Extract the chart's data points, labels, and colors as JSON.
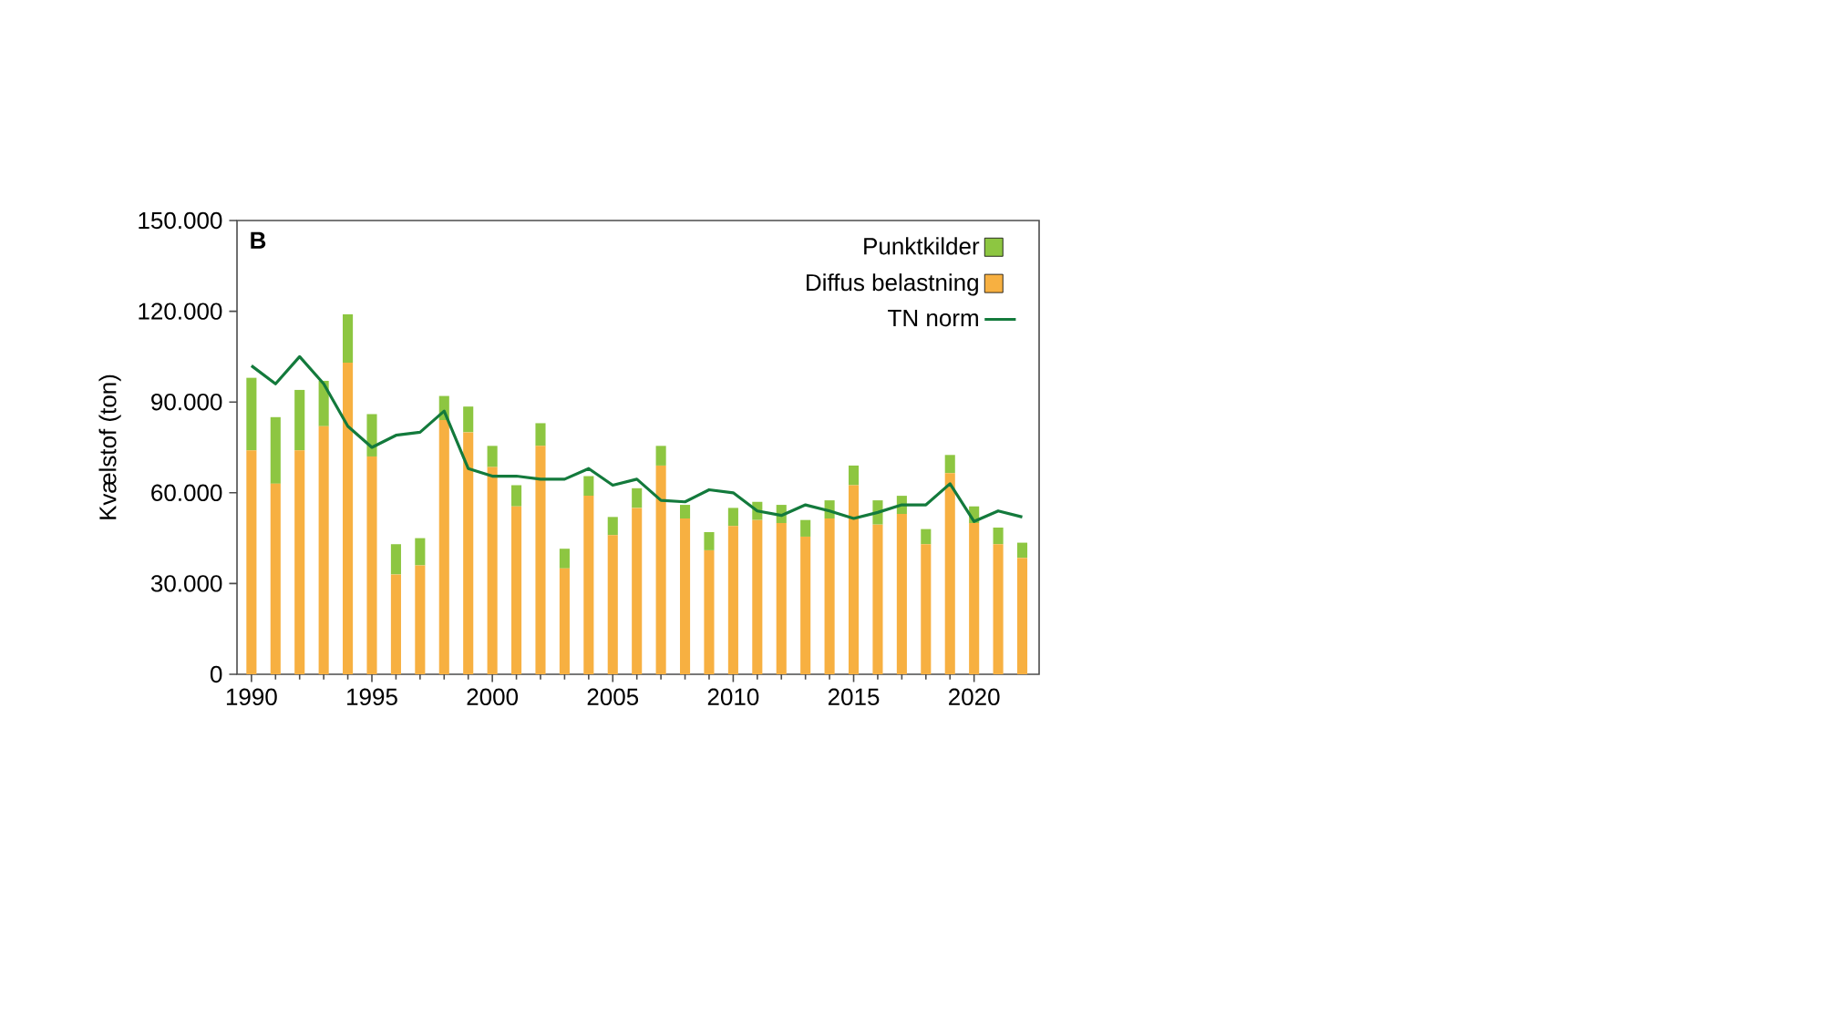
{
  "chart_data": {
    "type": "bar",
    "stacked": true,
    "ylabel": "Kvælstof (ton)",
    "annotations": [
      "B"
    ],
    "x": [
      1990,
      1991,
      1992,
      1993,
      1994,
      1995,
      1996,
      1997,
      1998,
      1999,
      2000,
      2001,
      2002,
      2003,
      2004,
      2005,
      2006,
      2007,
      2008,
      2009,
      2010,
      2011,
      2012,
      2013,
      2014,
      2015,
      2016,
      2017,
      2018,
      2019,
      2020,
      2021,
      2022
    ],
    "series": [
      {
        "name": "Diffus belastning",
        "type": "bar",
        "color": "#f7b041",
        "values": [
          74000,
          63000,
          74000,
          82000,
          103000,
          72000,
          33000,
          36000,
          84000,
          80000,
          68500,
          55500,
          75500,
          35000,
          59000,
          46000,
          55000,
          69000,
          51500,
          41000,
          49000,
          51000,
          50000,
          45500,
          51500,
          62500,
          49500,
          53000,
          43000,
          66500,
          50000,
          43000,
          38500
        ]
      },
      {
        "name": "Punktkilder",
        "type": "bar",
        "color": "#8dc641",
        "values": [
          24000,
          22000,
          20000,
          15000,
          16000,
          14000,
          10000,
          9000,
          8000,
          8500,
          7000,
          7000,
          7500,
          6500,
          6500,
          6000,
          6500,
          6500,
          4500,
          6000,
          6000,
          6000,
          6000,
          5500,
          6000,
          6500,
          8000,
          6000,
          5000,
          6000,
          5500,
          5500,
          5000
        ]
      },
      {
        "name": "TN norm",
        "type": "line",
        "color": "#137a3c",
        "values": [
          102000,
          96000,
          105000,
          96000,
          82000,
          75000,
          79000,
          80000,
          87000,
          68000,
          65500,
          65500,
          64500,
          64500,
          68000,
          62500,
          64500,
          57500,
          57000,
          61000,
          60000,
          54000,
          52500,
          56000,
          54000,
          51500,
          53500,
          56000,
          56000,
          63000,
          50500,
          54000,
          52000
        ]
      }
    ],
    "xlim": [
      1989.4,
      2022.7
    ],
    "xticks": [
      1990,
      1995,
      2000,
      2005,
      2010,
      2015,
      2020
    ],
    "ylim": [
      0,
      150000
    ],
    "yticks": [
      {
        "value": 0,
        "label": "0"
      },
      {
        "value": 30000,
        "label": "30.000"
      },
      {
        "value": 60000,
        "label": "60.000"
      },
      {
        "value": 90000,
        "label": "90.000"
      },
      {
        "value": 120000,
        "label": "120.000"
      },
      {
        "value": 150000,
        "label": "150.000"
      }
    ],
    "legend": "top right",
    "grid": false,
    "marker": "none",
    "line_style": "solid"
  }
}
